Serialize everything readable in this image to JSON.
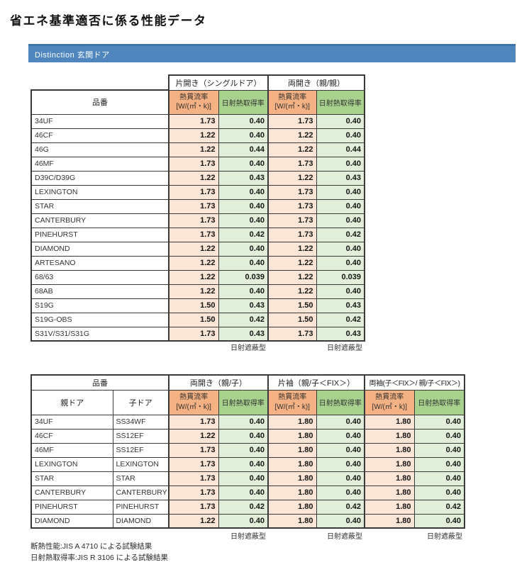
{
  "page_title": "省エネ基準適否に係る性能データ",
  "section_bar": {
    "label": "Distinction 玄関ドア"
  },
  "labels": {
    "product_col": "品番",
    "u_value": "熱貫流率",
    "u_unit": "[W/(㎡・k)]",
    "solar_gain": "日射熱取得率",
    "parent_door": "親ドア",
    "child_door": "子ドア"
  },
  "table1": {
    "groups": [
      {
        "label": "片開き（シングルドア）"
      },
      {
        "label": "両開き（親/親）"
      }
    ],
    "rows": [
      {
        "name": "34UF",
        "values": [
          "1.73",
          "0.40",
          "1.73",
          "0.40"
        ]
      },
      {
        "name": "46CF",
        "values": [
          "1.22",
          "0.40",
          "1.22",
          "0.40"
        ]
      },
      {
        "name": "46G",
        "values": [
          "1.22",
          "0.44",
          "1.22",
          "0.44"
        ]
      },
      {
        "name": "46MF",
        "values": [
          "1.73",
          "0.40",
          "1.73",
          "0.40"
        ]
      },
      {
        "name": "D39C/D39G",
        "values": [
          "1.22",
          "0.43",
          "1.22",
          "0.43"
        ]
      },
      {
        "name": "LEXINGTON",
        "values": [
          "1.73",
          "0.40",
          "1.73",
          "0.40"
        ]
      },
      {
        "name": "STAR",
        "values": [
          "1.73",
          "0.40",
          "1.73",
          "0.40"
        ]
      },
      {
        "name": "CANTERBURY",
        "values": [
          "1.73",
          "0.40",
          "1.73",
          "0.40"
        ]
      },
      {
        "name": "PINEHURST",
        "values": [
          "1.73",
          "0.42",
          "1.73",
          "0.42"
        ]
      },
      {
        "name": "DIAMOND",
        "values": [
          "1.22",
          "0.40",
          "1.22",
          "0.40"
        ]
      },
      {
        "name": "ARTESANO",
        "values": [
          "1.22",
          "0.40",
          "1.22",
          "0.40"
        ]
      },
      {
        "name": "68/63",
        "values": [
          "1.22",
          "0.039",
          "1.22",
          "0.039"
        ]
      },
      {
        "name": "68AB",
        "values": [
          "1.22",
          "0.40",
          "1.22",
          "0.40"
        ]
      },
      {
        "name": "S19G",
        "values": [
          "1.50",
          "0.43",
          "1.50",
          "0.43"
        ]
      },
      {
        "name": "S19G-OBS",
        "values": [
          "1.50",
          "0.42",
          "1.50",
          "0.42"
        ]
      },
      {
        "name": "S31V/S31/S31G",
        "values": [
          "1.73",
          "0.43",
          "1.73",
          "0.43"
        ]
      }
    ],
    "shading_notes": [
      "日射遮蔽型",
      "日射遮蔽型"
    ]
  },
  "table2": {
    "product_header": "品番",
    "groups": [
      {
        "label": "両開き（親/子）"
      },
      {
        "label": "片袖（親/子＜FIX＞）"
      },
      {
        "label": "両袖(子＜FIX＞/ 親/子＜FIX＞)"
      }
    ],
    "rows": [
      {
        "parent": "34UF",
        "child": "SS34WF",
        "values": [
          "1.73",
          "0.40",
          "1.80",
          "0.40",
          "1.80",
          "0.40"
        ]
      },
      {
        "parent": "46CF",
        "child": "SS12EF",
        "values": [
          "1.22",
          "0.40",
          "1.80",
          "0.40",
          "1.80",
          "0.40"
        ]
      },
      {
        "parent": "46MF",
        "child": "SS12EF",
        "values": [
          "1.73",
          "0.40",
          "1.80",
          "0.40",
          "1.80",
          "0.40"
        ]
      },
      {
        "parent": "LEXINGTON",
        "child": "LEXINGTON",
        "values": [
          "1.73",
          "0.40",
          "1.80",
          "0.40",
          "1.80",
          "0.40"
        ]
      },
      {
        "parent": "STAR",
        "child": "STAR",
        "values": [
          "1.73",
          "0.40",
          "1.80",
          "0.40",
          "1.80",
          "0.40"
        ]
      },
      {
        "parent": "CANTERBURY",
        "child": "CANTERBURY",
        "values": [
          "1.73",
          "0.40",
          "1.80",
          "0.40",
          "1.80",
          "0.40"
        ]
      },
      {
        "parent": "PINEHURST",
        "child": "PINEHURST",
        "values": [
          "1.73",
          "0.42",
          "1.80",
          "0.42",
          "1.80",
          "0.42"
        ]
      },
      {
        "parent": "DIAMOND",
        "child": "DIAMOND",
        "values": [
          "1.22",
          "0.40",
          "1.80",
          "0.40",
          "1.80",
          "0.40"
        ]
      }
    ],
    "shading_notes": [
      "日射遮蔽型",
      "日射遮蔽型",
      "日射遮蔽型"
    ]
  },
  "footnotes": [
    "断熱性能:JIS A 4710 による試験結果",
    "日射熱取得率:JIS R 3106 による試験結果"
  ],
  "colors": {
    "section_bar_bg": "#4e86bd",
    "section_bar_top": "#3c74a8",
    "u_header_bg": "#f4b183",
    "u_cell_bg": "#fbe5d6",
    "solar_header_bg": "#a9d18e",
    "solar_cell_bg": "#e2efda",
    "border": "#3a3a3a"
  }
}
